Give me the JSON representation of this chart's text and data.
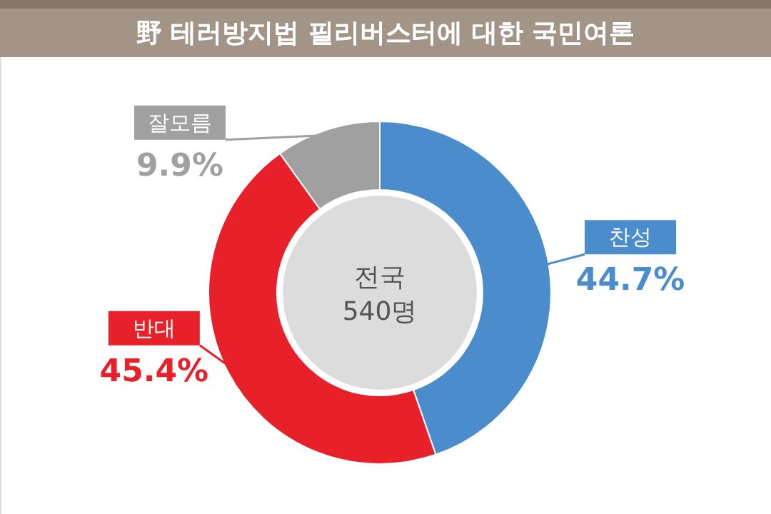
{
  "chart_data": {
    "type": "donut",
    "title": "野 테러방지법 필리버스터에 대한 국민여론",
    "categories": [
      "찬성",
      "반대",
      "잘모름"
    ],
    "values": [
      44.7,
      45.4,
      9.9
    ],
    "colors": [
      "#4a8ccc",
      "#e8202a",
      "#a0a0a0"
    ],
    "value_labels": [
      "44.7%",
      "45.4%",
      "9.9%"
    ],
    "annotations": [
      "전국",
      "540명"
    ]
  }
}
